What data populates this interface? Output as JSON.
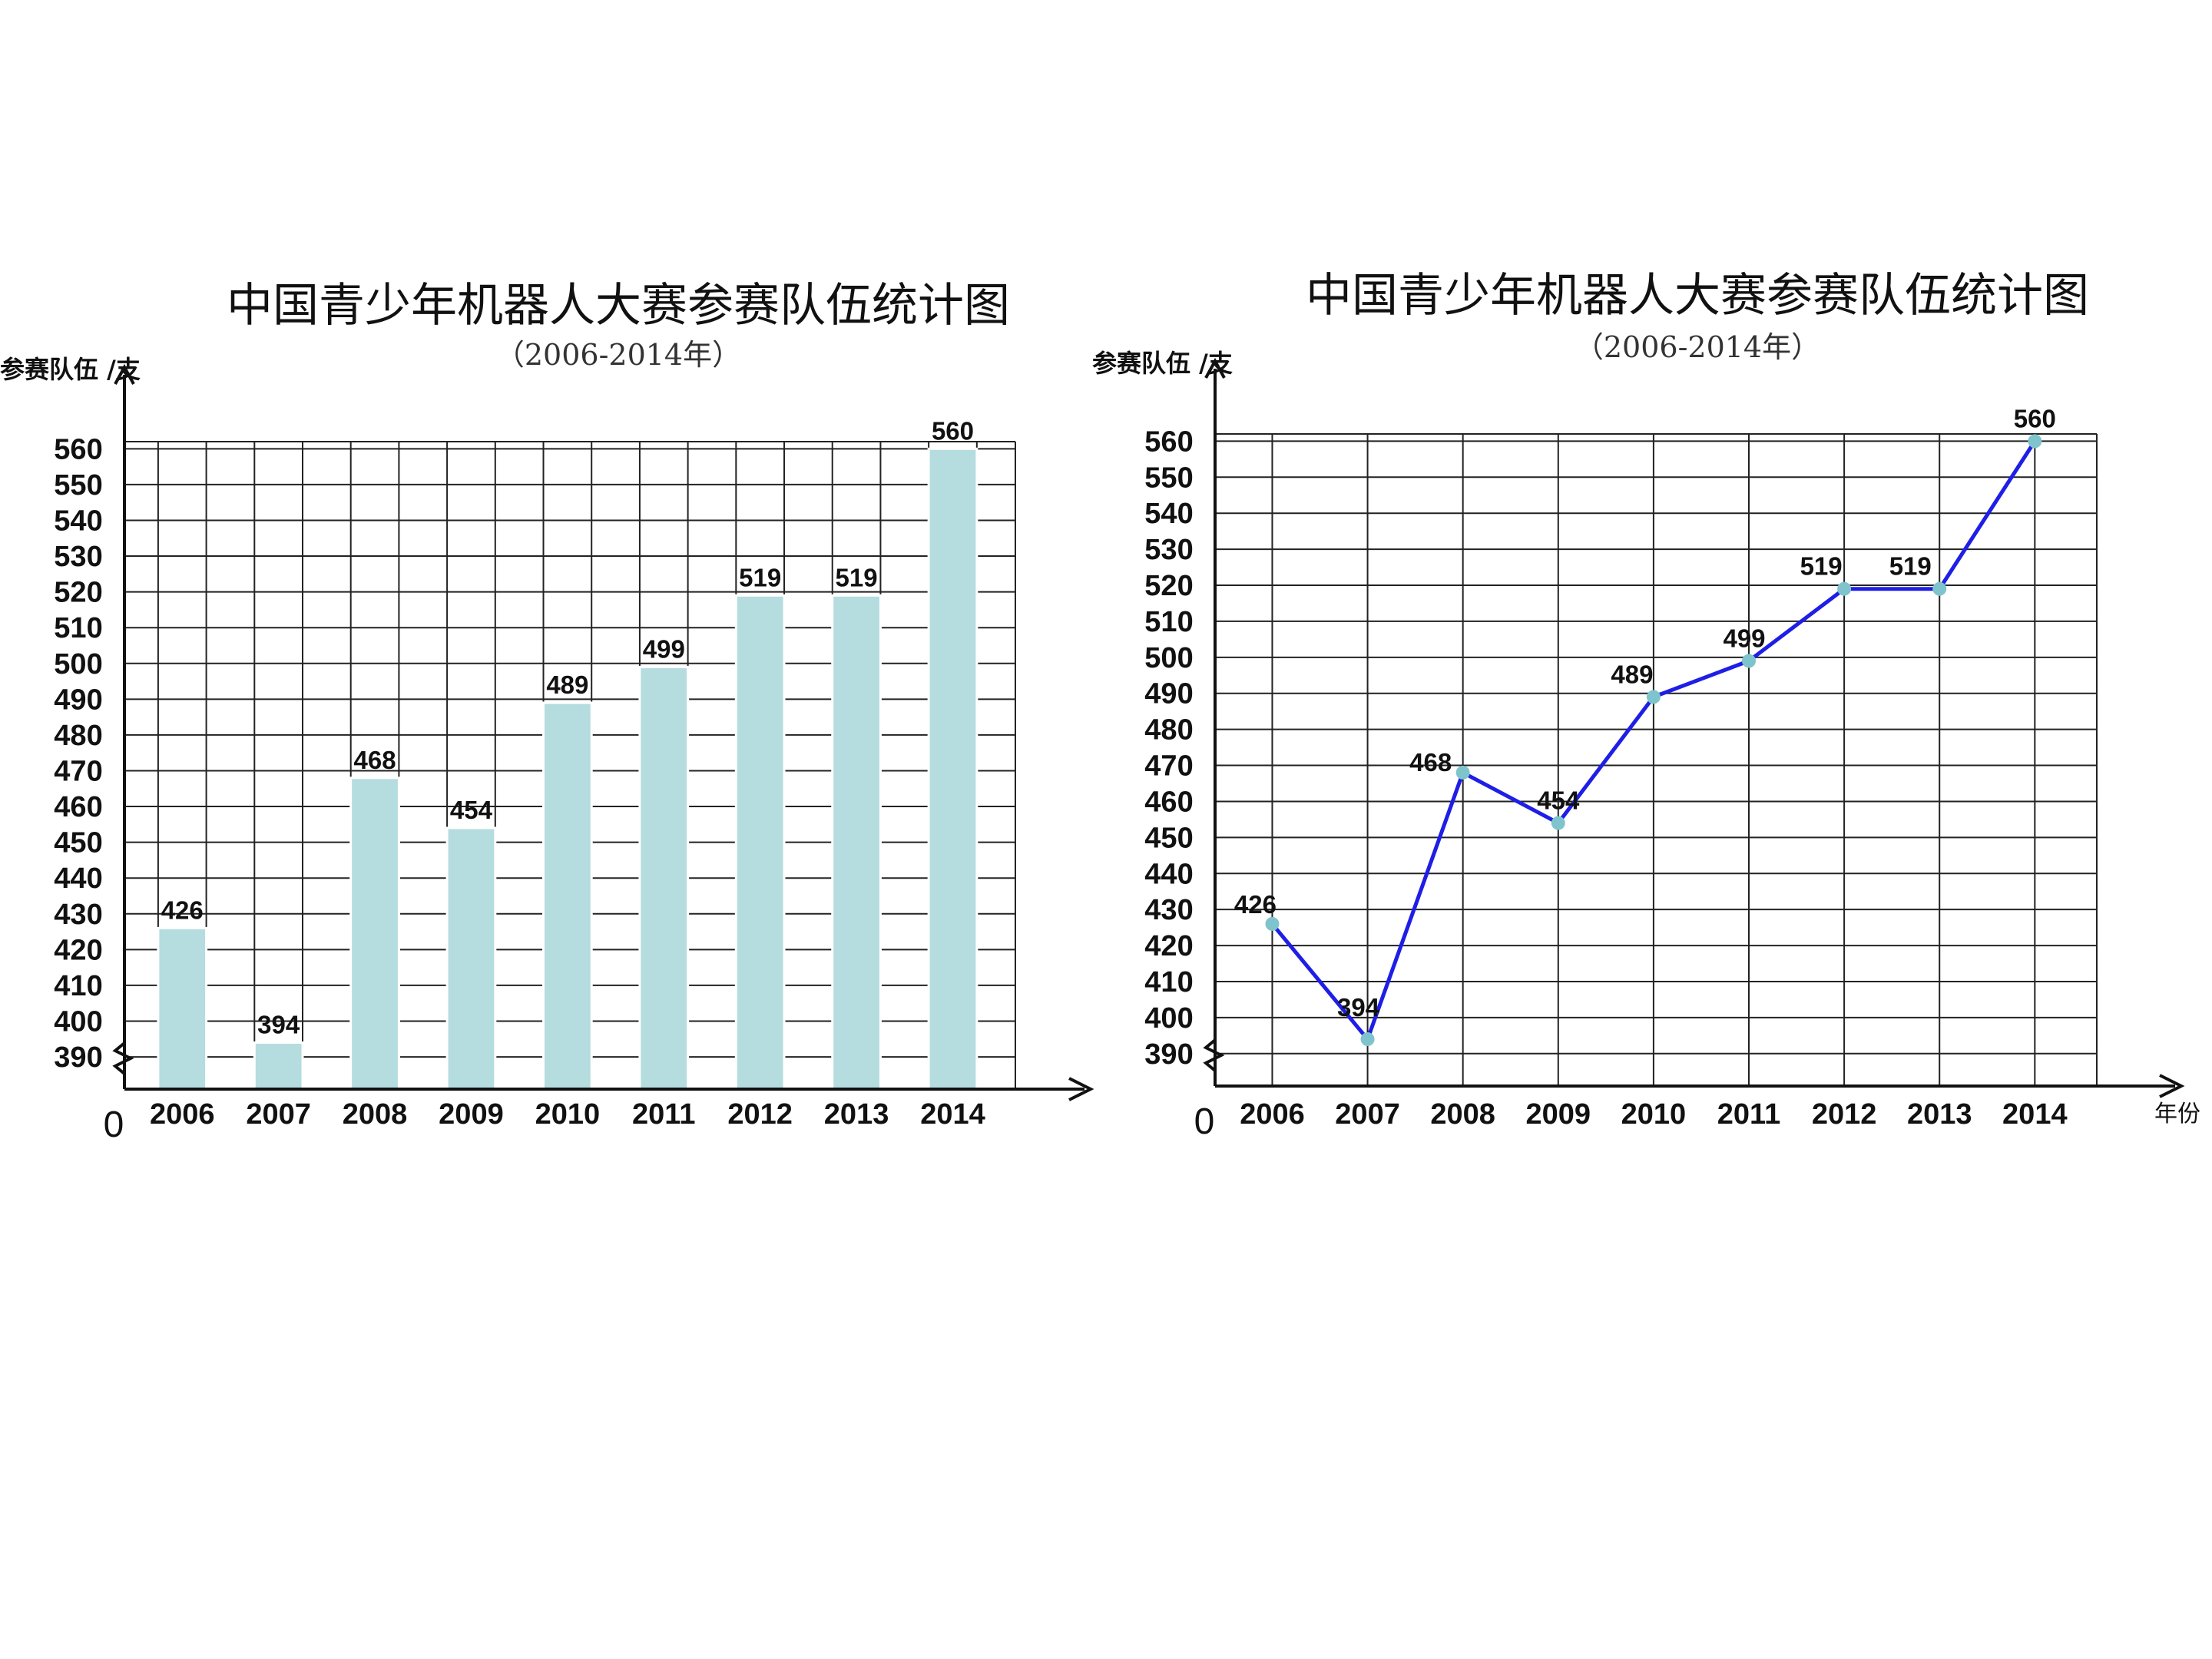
{
  "colors": {
    "bar": "#b5dcdf",
    "line": "#1e1ee6",
    "point": "#7fc4cc",
    "grid": "#222222"
  },
  "chart_data": [
    {
      "type": "bar",
      "title": "中国青少年机器人大赛参赛队伍统计图",
      "subtitle": "（2006-2014年）",
      "ylabel": "参赛队伍 /支",
      "xlabel": "",
      "origin_label": "0",
      "categories": [
        "2006",
        "2007",
        "2008",
        "2009",
        "2010",
        "2011",
        "2012",
        "2013",
        "2014"
      ],
      "values": [
        426,
        394,
        468,
        454,
        489,
        499,
        519,
        519,
        560
      ],
      "value_labels": [
        "426",
        "394",
        "468",
        "454",
        "489",
        "499",
        "519",
        "519",
        "560"
      ],
      "yticks": [
        390,
        400,
        410,
        420,
        430,
        440,
        450,
        460,
        470,
        480,
        490,
        500,
        510,
        520,
        530,
        540,
        550,
        560
      ],
      "ylim": [
        381,
        562
      ],
      "axis_break": true,
      "grid": true,
      "legend": "none"
    },
    {
      "type": "line",
      "title": "中国青少年机器人大赛参赛队伍统计图",
      "subtitle": "（2006-2014年）",
      "ylabel": "参赛队伍 /支",
      "xlabel": "年份",
      "origin_label": "0",
      "categories": [
        "2006",
        "2007",
        "2008",
        "2009",
        "2010",
        "2011",
        "2012",
        "2013",
        "2014"
      ],
      "values": [
        426,
        394,
        468,
        454,
        489,
        499,
        519,
        519,
        560
      ],
      "value_labels": [
        "426",
        "394",
        "468",
        "454",
        "489",
        "499",
        "519",
        "519",
        "560"
      ],
      "yticks": [
        390,
        400,
        410,
        420,
        430,
        440,
        450,
        460,
        470,
        480,
        490,
        500,
        510,
        520,
        530,
        540,
        550,
        560
      ],
      "ylim": [
        381,
        562
      ],
      "axis_break": true,
      "grid": true,
      "legend": "none"
    }
  ]
}
